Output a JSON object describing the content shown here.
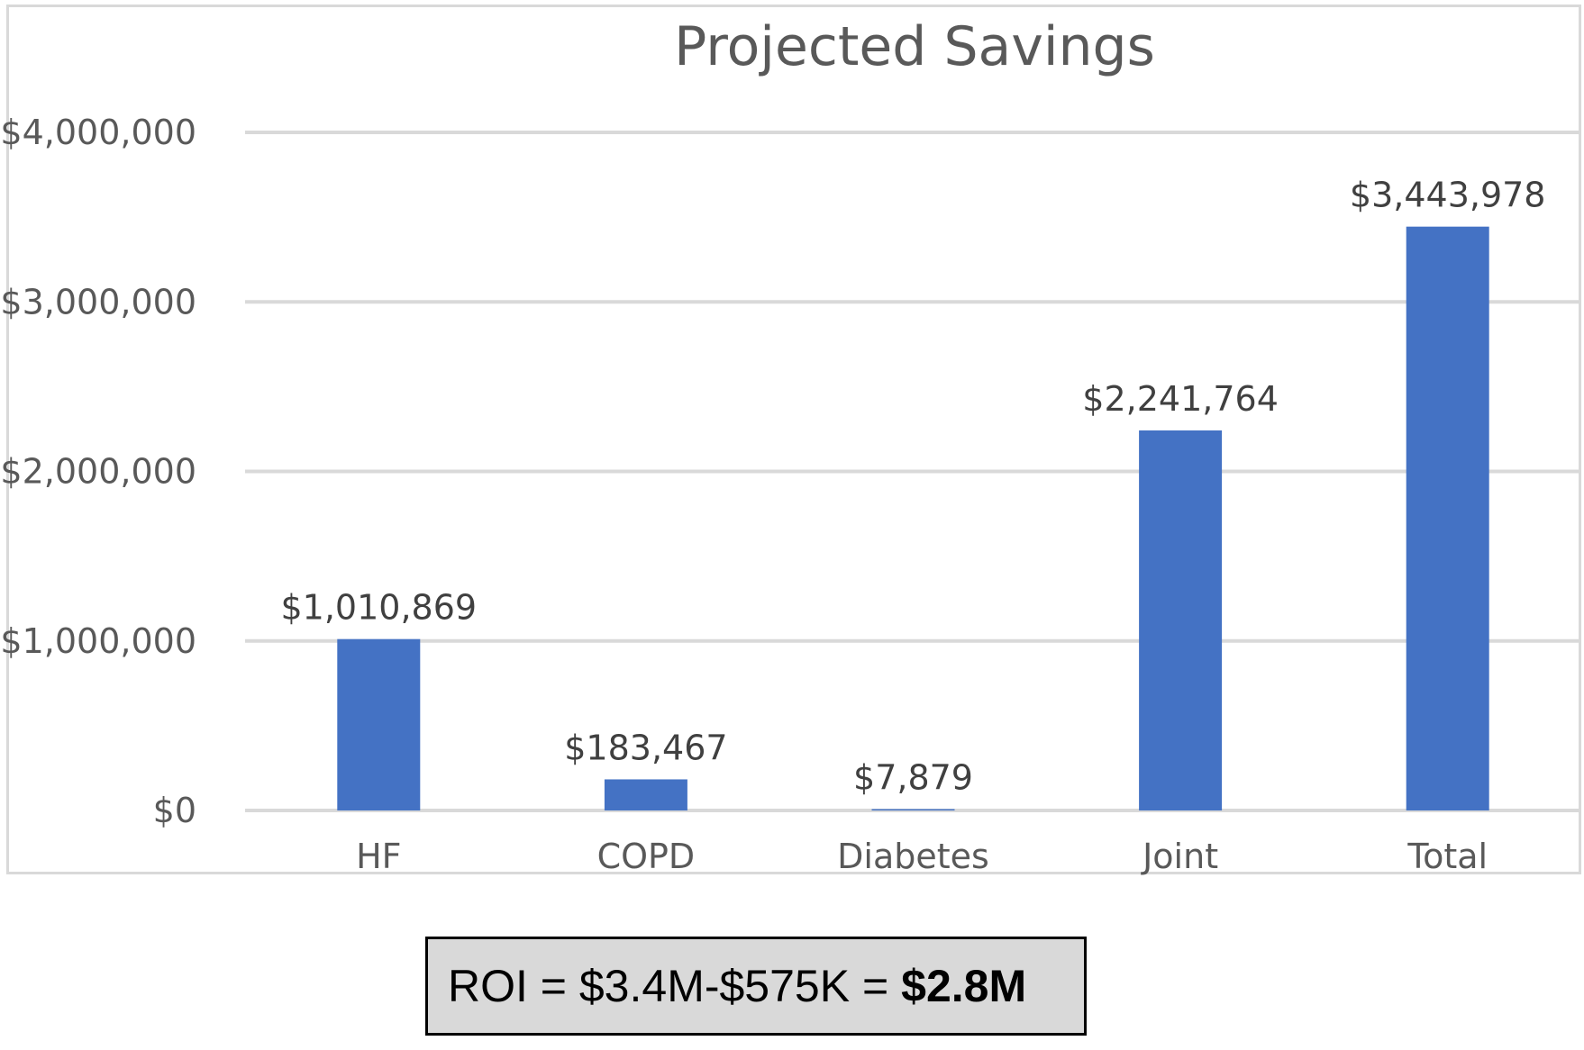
{
  "chart_data": {
    "type": "bar",
    "title": "Projected Savings",
    "xlabel": "",
    "ylabel": "",
    "categories": [
      "HF",
      "COPD",
      "Diabetes",
      "Joint",
      "Total"
    ],
    "values": [
      1010869,
      183467,
      7879,
      2241764,
      3443978
    ],
    "data_labels": [
      "$1,010,869",
      "$183,467",
      "$7,879",
      "$2,241,764",
      "$3,443,978"
    ],
    "ylim": [
      0,
      4000000
    ],
    "yticks": [
      0,
      1000000,
      2000000,
      3000000,
      4000000
    ],
    "ytick_labels": [
      "$0",
      "$1,000,000",
      "$2,000,000",
      "$3,000,000",
      "$4,000,000"
    ],
    "grid": true,
    "bar_color": "#4472c4"
  },
  "roi": {
    "formula": "ROI = $3.4M-$575K =",
    "result": "$2.8M"
  }
}
